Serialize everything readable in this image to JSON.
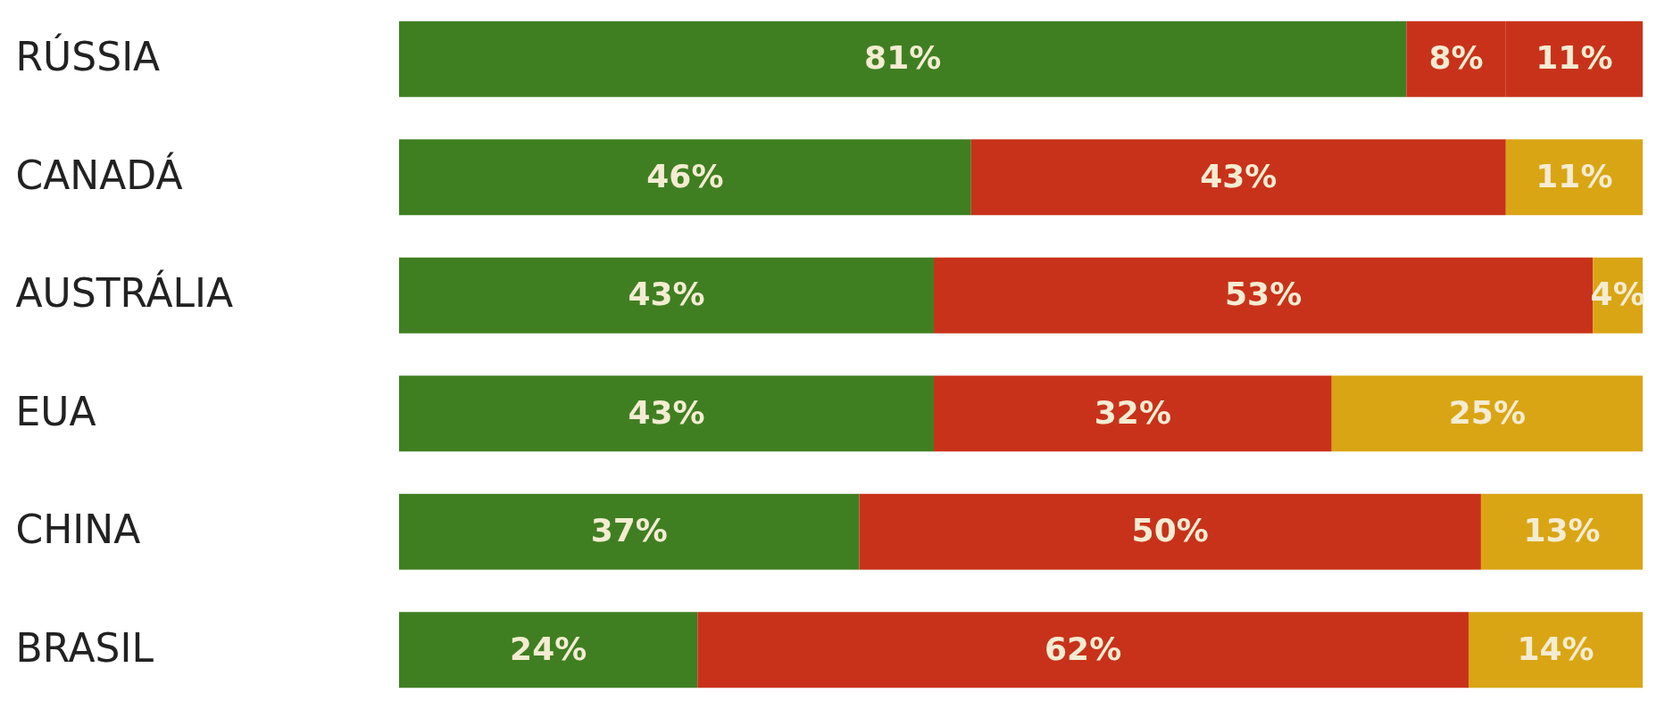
{
  "chart_data": {
    "type": "bar",
    "orientation": "horizontal",
    "stacked": true,
    "categories": [
      "RÚSSIA",
      "CANADÁ",
      "AUSTRÁLIA",
      "EUA",
      "CHINA",
      "BRASIL"
    ],
    "series": [
      {
        "color": "#3f7f22",
        "values": [
          81,
          46,
          43,
          43,
          37,
          24
        ],
        "value_labels": [
          "81%",
          "46%",
          "43%",
          "43%",
          "37%",
          "24%"
        ]
      },
      {
        "color": "#c8321a",
        "values": [
          8,
          43,
          53,
          32,
          50,
          62
        ],
        "value_labels": [
          "8%",
          "43%",
          "53%",
          "32%",
          "50%",
          "62%"
        ]
      },
      {
        "color": "#d9a514",
        "colors": [
          "#c8321a",
          null,
          null,
          null,
          null,
          null
        ],
        "values": [
          11,
          11,
          4,
          25,
          13,
          14
        ],
        "value_labels": [
          "11%",
          "11%",
          "4%",
          "25%",
          "13%",
          "14%"
        ]
      }
    ]
  }
}
